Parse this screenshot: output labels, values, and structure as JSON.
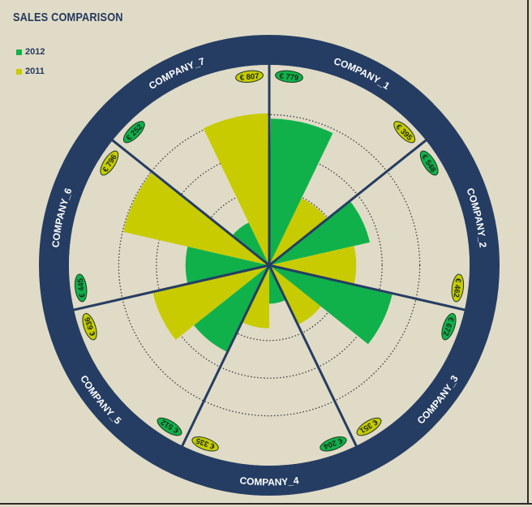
{
  "chart_data": {
    "type": "polar-area",
    "title": "SALES COMPARISON",
    "legend": [
      {
        "name": "2012",
        "color": "#10b14b"
      },
      {
        "name": "2011",
        "color": "#c8cb00"
      }
    ],
    "series": [
      {
        "name": "2012",
        "values": [
          779,
          548,
          672,
          204,
          512,
          445,
          252
        ]
      },
      {
        "name": "2011",
        "values": [
          395,
          462,
          351,
          335,
          636,
          796,
          807
        ]
      }
    ],
    "categories": [
      "COMPANY_1",
      "COMPANY_2",
      "COMPANY_3",
      "COMPANY_4",
      "COMPANY_5",
      "COMPANY_6",
      "COMPANY_7"
    ],
    "value_labels": {
      "2012": [
        "€ 779",
        "€ 548",
        "€ 672",
        "€ 204",
        "€ 512",
        "€ 445",
        "€ 252"
      ],
      "2011": [
        "€ 395",
        "€ 462",
        "€ 351",
        "€ 335",
        "€ 636",
        "€ 796",
        "€ 807"
      ]
    },
    "ylim": [
      0,
      1000
    ],
    "grid": true,
    "legend_position": "top-left",
    "colors": {
      "ring": "#253d63",
      "background": "#e0dbc6",
      "ring_text": "#ffffff",
      "grid": "#2b2b3b"
    }
  }
}
